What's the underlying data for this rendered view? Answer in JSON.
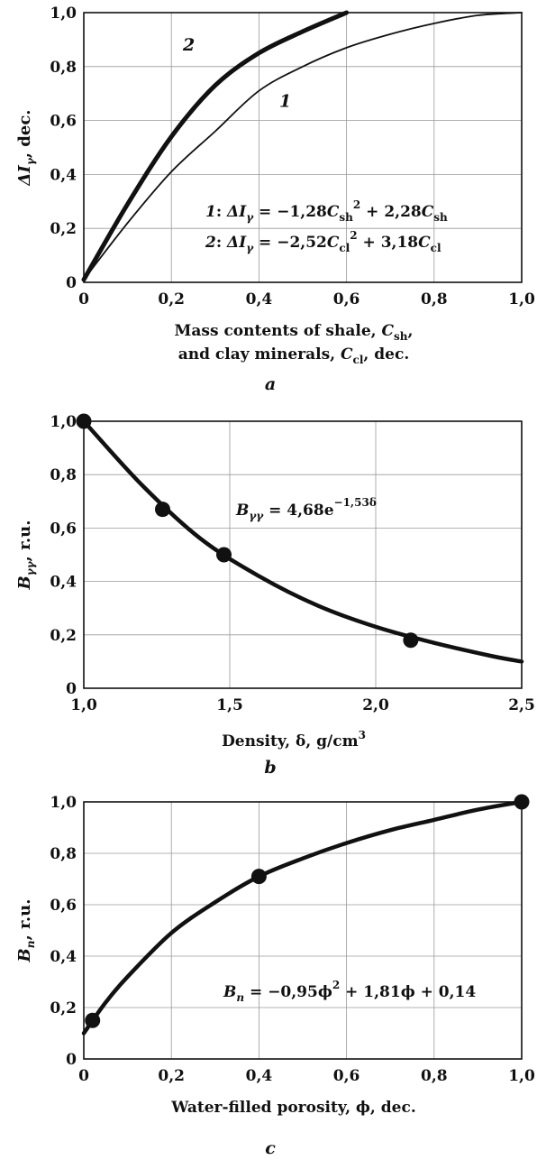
{
  "chart_data": [
    {
      "type": "line",
      "panel_label": "a",
      "ylabel": {
        "prefix": "ΔI",
        "sub": "γ",
        "suffix": ", dec."
      },
      "xlabel_lines": [
        {
          "text": "Mass contents of shale, ",
          "var": "C",
          "sub": "sh",
          "suffix": ","
        },
        {
          "text": "and clay minerals, ",
          "var": "C",
          "sub": "cl",
          "suffix": ", dec."
        }
      ],
      "xlim": [
        0,
        1
      ],
      "ylim": [
        0,
        1
      ],
      "x_ticks": [
        "0",
        "0,2",
        "0,4",
        "0,6",
        "0,8",
        "1,0"
      ],
      "y_ticks": [
        "0",
        "0,2",
        "0,4",
        "0,6",
        "0,8",
        "1,0"
      ],
      "grid": true,
      "series": [
        {
          "name": "1",
          "line_width": "thin",
          "color": "#111111",
          "x": [
            0,
            0.1,
            0.2,
            0.3,
            0.4,
            0.5,
            0.6,
            0.7,
            0.8,
            0.9,
            1.0
          ],
          "y": [
            0.01,
            0.22,
            0.41,
            0.56,
            0.71,
            0.8,
            0.87,
            0.92,
            0.96,
            0.99,
            1.0
          ]
        },
        {
          "name": "2",
          "line_width": "thick",
          "color": "#111111",
          "x": [
            0,
            0.1,
            0.2,
            0.3,
            0.4,
            0.5,
            0.6
          ],
          "y": [
            0.01,
            0.29,
            0.54,
            0.73,
            0.85,
            0.93,
            1.0
          ]
        }
      ],
      "equations": [
        {
          "id": "1",
          "lhs": "ΔI",
          "lhs_sub": "γ",
          "rhs1": " = −1,28",
          "var1": "C",
          "sub1": "sh",
          "exp1": "2",
          "rhs2": " + 2,28",
          "var2": "C",
          "sub2": "sh"
        },
        {
          "id": "2",
          "lhs": "ΔI",
          "lhs_sub": "γ",
          "rhs1": " = −2,52",
          "var1": "C",
          "sub1": "cl",
          "exp1": "2",
          "rhs2": " + 3,18",
          "var2": "C",
          "sub2": "cl"
        }
      ]
    },
    {
      "type": "line",
      "panel_label": "b",
      "ylabel": {
        "prefix": "B",
        "sub": "γγ",
        "suffix": ", r.u."
      },
      "xlabel_lines": [
        {
          "text": "Density, δ, g/cm",
          "sup": "3"
        }
      ],
      "xlim": [
        1.0,
        2.5
      ],
      "ylim": [
        0,
        1
      ],
      "x_ticks": [
        "1,0",
        "1,5",
        "2,0",
        "2,5"
      ],
      "y_ticks": [
        "0",
        "0,2",
        "0,4",
        "0,6",
        "0,8",
        "1,0"
      ],
      "grid": true,
      "points": {
        "x": [
          1.0,
          1.27,
          1.48,
          2.12
        ],
        "y": [
          1.0,
          0.67,
          0.5,
          0.18
        ]
      },
      "curve": {
        "x": [
          1.0,
          1.2,
          1.4,
          1.6,
          1.8,
          2.0,
          2.2,
          2.4,
          2.5
        ],
        "y": [
          1.0,
          0.76,
          0.56,
          0.42,
          0.31,
          0.23,
          0.17,
          0.12,
          0.1
        ]
      },
      "equation": {
        "lhs": "B",
        "lhs_sub": "γγ",
        "rhs": " = 4,68e",
        "exp": "−1,53δ"
      }
    },
    {
      "type": "line",
      "panel_label": "c",
      "ylabel": {
        "prefix": "B",
        "sub": "n",
        "suffix": ", r.u."
      },
      "xlabel_lines": [
        {
          "text": "Water-filled porosity, ϕ, dec."
        }
      ],
      "xlim": [
        0,
        1
      ],
      "ylim": [
        0,
        1
      ],
      "x_ticks": [
        "0",
        "0,2",
        "0,4",
        "0,6",
        "0,8",
        "1,0"
      ],
      "y_ticks": [
        "0",
        "0,2",
        "0,4",
        "0,6",
        "0,8",
        "1,0"
      ],
      "grid": true,
      "points": {
        "x": [
          0.02,
          0.4,
          1.0
        ],
        "y": [
          0.15,
          0.71,
          1.0
        ]
      },
      "curve": {
        "x": [
          0,
          0.05,
          0.1,
          0.2,
          0.3,
          0.4,
          0.5,
          0.6,
          0.7,
          0.8,
          0.9,
          1.0
        ],
        "y": [
          0.1,
          0.22,
          0.32,
          0.49,
          0.61,
          0.71,
          0.78,
          0.84,
          0.89,
          0.93,
          0.97,
          1.0
        ]
      },
      "equation": {
        "lhs": "B",
        "lhs_sub": "n",
        "rhs": " = −0,95ϕ",
        "exp": "2",
        "rhs2": " + 1,81ϕ + 0,14"
      }
    }
  ]
}
